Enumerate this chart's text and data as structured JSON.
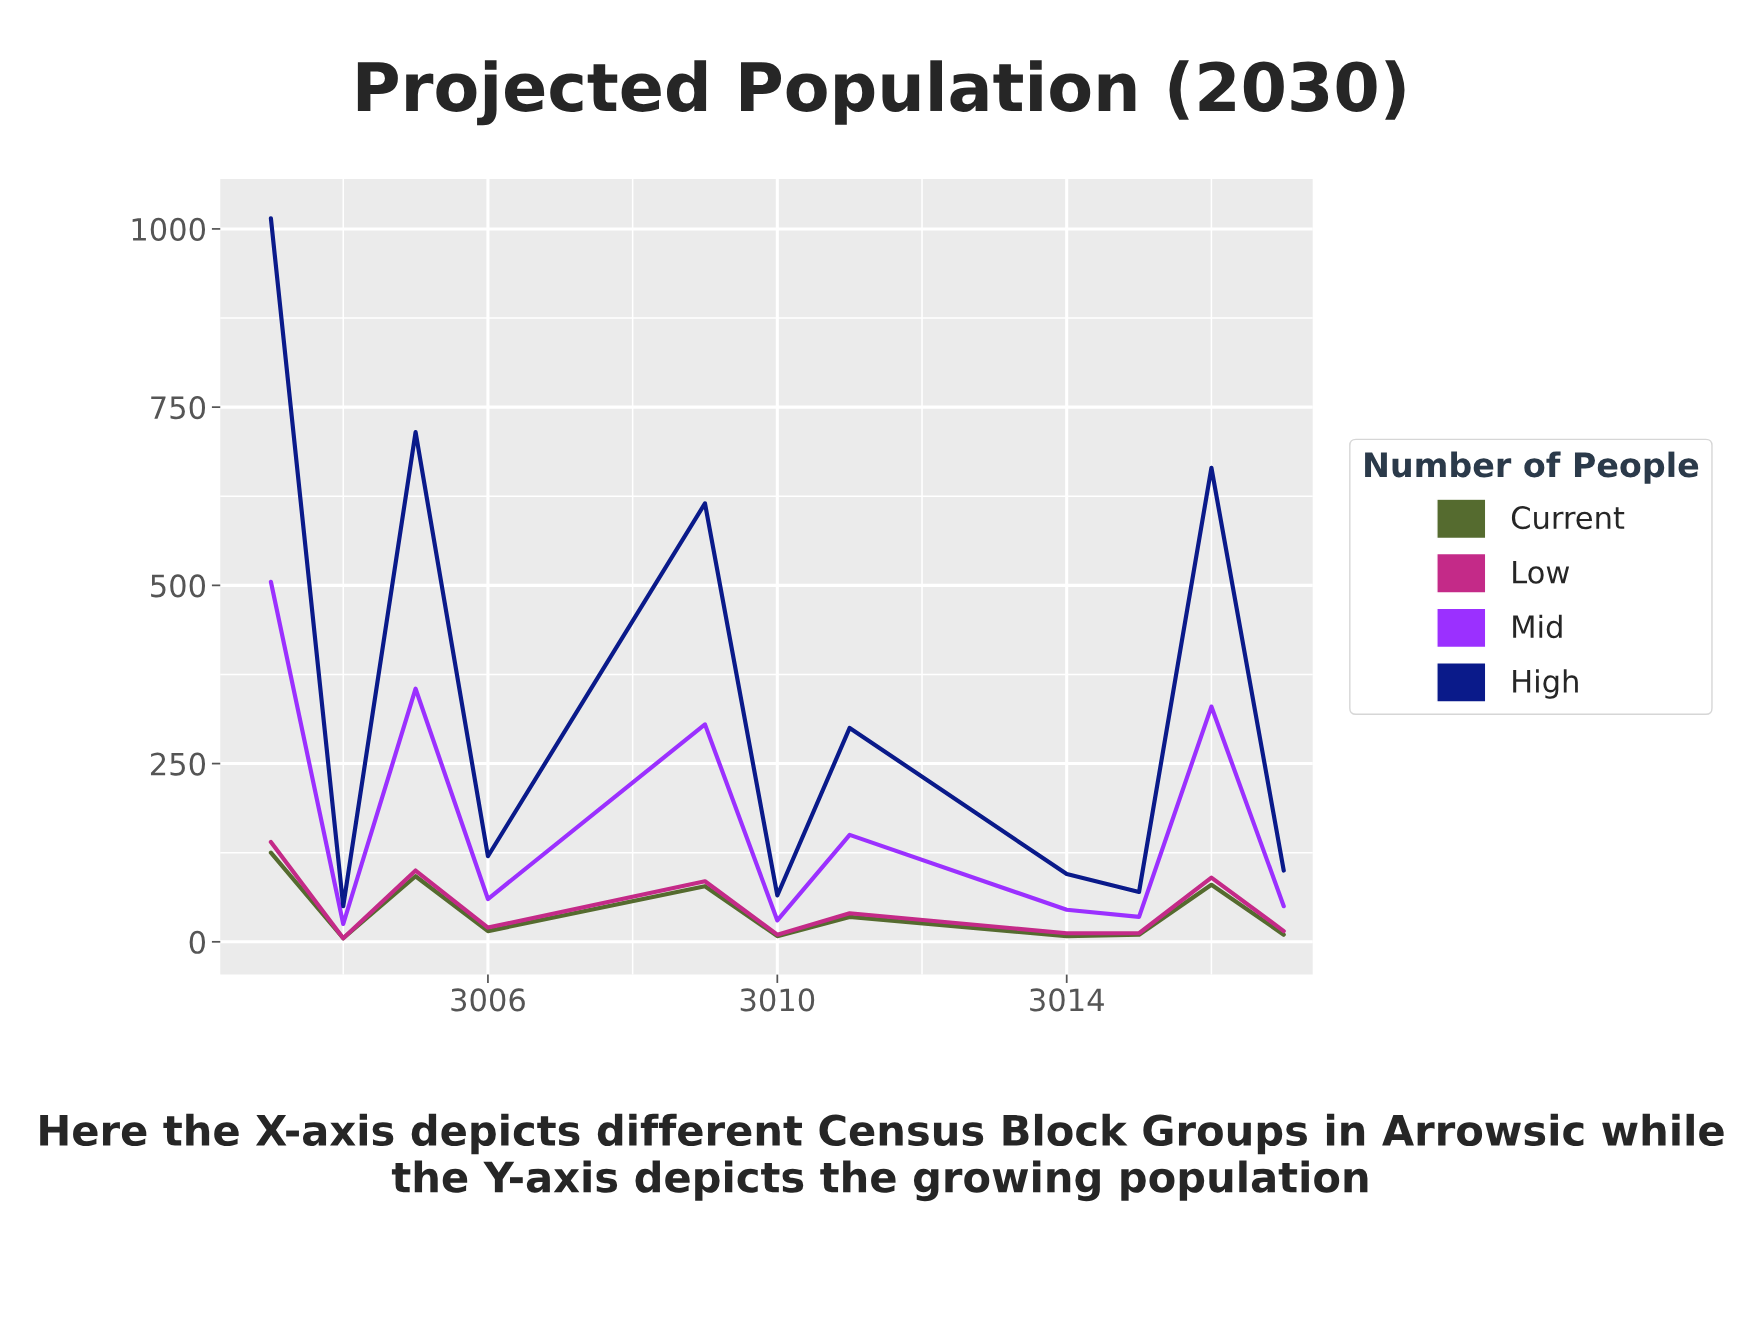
{
  "chart_data": {
    "type": "line",
    "title": "Projected Population (2030)",
    "legend_title": "Number of People",
    "legend": "right",
    "grid": true,
    "marker": "none",
    "line_style": "solid",
    "x": [
      3003,
      3004,
      3005,
      3006,
      3009,
      3010,
      3011,
      3014,
      3015,
      3016,
      3017
    ],
    "xlim": [
      3002.3,
      3017.4
    ],
    "xticks": [
      3006,
      3010,
      3014
    ],
    "ylim": [
      -46,
      1070
    ],
    "yticks": [
      0,
      250,
      500,
      750,
      1000
    ],
    "series": [
      {
        "name": "Current",
        "color": "#556b2f",
        "values": [
          125,
          5,
          92,
          15,
          78,
          8,
          35,
          8,
          10,
          80,
          10
        ]
      },
      {
        "name": "Low",
        "color": "#c42a88",
        "values": [
          140,
          5,
          100,
          20,
          85,
          10,
          40,
          12,
          12,
          90,
          15
        ]
      },
      {
        "name": "Mid",
        "color": "#9b30ff",
        "values": [
          505,
          25,
          355,
          60,
          305,
          30,
          150,
          45,
          35,
          330,
          50
        ]
      },
      {
        "name": "High",
        "color": "#0a1a8a",
        "values": [
          1015,
          50,
          715,
          120,
          615,
          65,
          300,
          95,
          70,
          665,
          100
        ]
      }
    ],
    "annotations": [
      "Here the X-axis depicts different Census Block Groups in Arrowsic while the Y-axis depicts the growing population"
    ]
  }
}
